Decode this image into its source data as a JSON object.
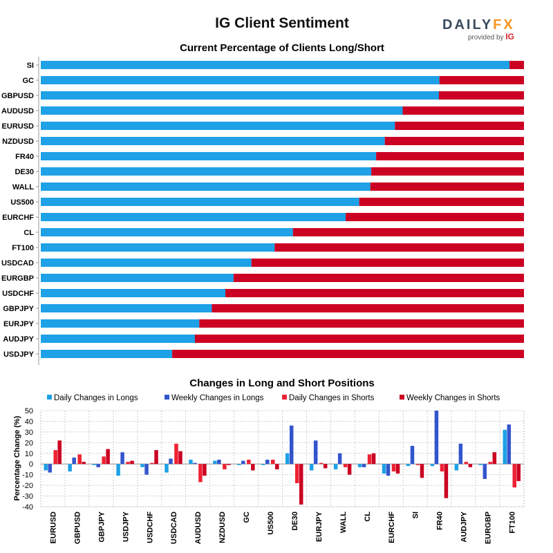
{
  "header": {
    "title": "IG Client Sentiment",
    "logo_word_main": "DAILY",
    "logo_word_accent": "FX",
    "logo_sub": "provided by",
    "logo_sub_brand": "IG"
  },
  "colors": {
    "long": "#1ea1e6",
    "short": "#cc0022",
    "daily_long": "#1ea1e6",
    "weekly_long": "#3355cc",
    "daily_short": "#ee2233",
    "weekly_short": "#cc0022",
    "logo_text": "#3b4a5e",
    "logo_accent": "#f7931e",
    "ig_red": "#d9232d"
  },
  "chart_data": [
    {
      "type": "bar",
      "orientation": "horizontal",
      "stacked": true,
      "title": "Current Percentage of Clients Long/Short",
      "categories": [
        "SI",
        "GC",
        "GBPUSD",
        "AUDUSD",
        "EURUSD",
        "NZDUSD",
        "FR40",
        "DE30",
        "WALL",
        "US500",
        "EURCHF",
        "CL",
        "FT100",
        "USDCAD",
        "EURGBP",
        "USDCHF",
        "GBPJPY",
        "EURJPY",
        "AUDJPY",
        "USDJPY"
      ],
      "series": [
        {
          "values": [
            97,
            82.5,
            82.4,
            74.9,
            73.3,
            71.2,
            69.4,
            68.4,
            68.2,
            65.9,
            63.1,
            52.2,
            48.4,
            43.6,
            39.9,
            38.2,
            35.4,
            32.8,
            31.9,
            27.2
          ]
        },
        {
          "values": [
            3,
            17.5,
            17.6,
            25.1,
            26.7,
            28.8,
            30.6,
            31.6,
            31.8,
            34.1,
            36.9,
            47.8,
            51.6,
            56.4,
            60.1,
            61.8,
            64.6,
            67.2,
            68.1,
            72.8
          ]
        }
      ],
      "xlim": [
        0,
        100
      ],
      "grid": false
    },
    {
      "type": "bar",
      "title": "Changes in Long and Short Positions",
      "ylabel": "Percentage Change (%)",
      "ylim": [
        -40,
        50
      ],
      "yticks": [
        50,
        40,
        30,
        20,
        10,
        0,
        -10,
        -20,
        -30,
        -40
      ],
      "legend_position": "top",
      "grid": true,
      "categories": [
        "EURUSD",
        "GBPUSD",
        "GBPJPY",
        "USDJPY",
        "USDCHF",
        "USDCAD",
        "AUDUSD",
        "NZDUSD",
        "GC",
        "US500",
        "DE30",
        "EURJPY",
        "WALL",
        "CL",
        "EURCHF",
        "SI",
        "FR40",
        "AUDJPY",
        "EURGBP",
        "FT100"
      ],
      "series": [
        {
          "name": "Daily Changes in Longs",
          "values": [
            -6,
            -7,
            -1,
            -11,
            -3,
            -8,
            4,
            3,
            -1,
            -1,
            10,
            -6,
            -5,
            -3,
            -9,
            -2,
            -2,
            -6,
            -1,
            32
          ]
        },
        {
          "name": "Weekly Changes in Longs",
          "values": [
            -8,
            6,
            -3,
            11,
            -10,
            5,
            1,
            4,
            3,
            4,
            36,
            22,
            10,
            -3,
            -11,
            17,
            50,
            19,
            -14,
            37
          ]
        },
        {
          "name": "Daily Changes in Shorts",
          "values": [
            13,
            9,
            7,
            2,
            1,
            19,
            -17,
            -5,
            4,
            4,
            -18,
            1,
            -3,
            9,
            -7,
            -1,
            -7,
            2,
            2,
            -22
          ]
        },
        {
          "name": "Weekly Changes in Shorts",
          "values": [
            22,
            2,
            14,
            3,
            13,
            12,
            -11,
            -1,
            -6,
            -5,
            -38,
            -4,
            -10,
            10,
            -9,
            -13,
            -32,
            -3,
            11,
            -16
          ]
        }
      ]
    }
  ]
}
